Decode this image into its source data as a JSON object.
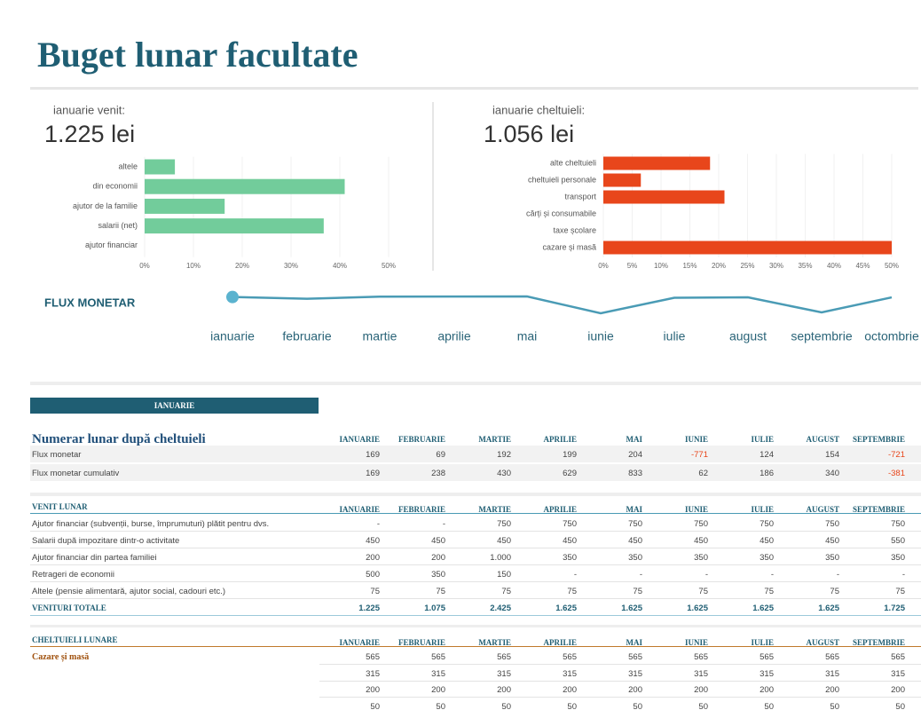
{
  "header": {
    "title": "Buget lunar facultate"
  },
  "chart_data": [
    {
      "type": "bar",
      "title": "ianuarie venit:",
      "subtitle": "1.225 lei",
      "categories": [
        "altele",
        "din economii",
        "ajutor de la familie",
        "salarii (net)",
        "ajutor financiar"
      ],
      "values": [
        6.2,
        41,
        16.4,
        36.7,
        0
      ],
      "color": "#72cc9b",
      "grid": true,
      "xlim": [
        0,
        50
      ],
      "xticks": [
        {
          "value": 0,
          "label": "0%"
        },
        {
          "value": 10,
          "label": "10%"
        },
        {
          "value": 20,
          "label": "20%"
        },
        {
          "value": 30,
          "label": "30%"
        },
        {
          "value": 40,
          "label": "40%"
        },
        {
          "value": 50,
          "label": "50%"
        }
      ]
    },
    {
      "type": "bar",
      "title": "ianuarie cheltuieli:",
      "subtitle": "1.056 lei",
      "categories": [
        "alte cheltuieli",
        "cheltuieli personale",
        "transport",
        "cărți și consumabile",
        "taxe școlare",
        "cazare și masă"
      ],
      "values": [
        18.5,
        6.5,
        21,
        0,
        0,
        50
      ],
      "color": "#e8461b",
      "grid": true,
      "xlim": [
        0,
        50
      ],
      "xticks": [
        {
          "value": 0,
          "label": "0%"
        },
        {
          "value": 5,
          "label": "5%"
        },
        {
          "value": 10,
          "label": "10%"
        },
        {
          "value": 15,
          "label": "15%"
        },
        {
          "value": 20,
          "label": "20%"
        },
        {
          "value": 25,
          "label": "25%"
        },
        {
          "value": 30,
          "label": "30%"
        },
        {
          "value": 35,
          "label": "35%"
        },
        {
          "value": 40,
          "label": "40%"
        },
        {
          "value": 45,
          "label": "45%"
        },
        {
          "value": 50,
          "label": "50%"
        }
      ]
    },
    {
      "type": "line",
      "title": "FLUX MONETAR",
      "categories": [
        "ianuarie",
        "februarie",
        "martie",
        "aprilie",
        "mai",
        "iunie",
        "iulie",
        "august",
        "septembrie",
        "octombrie"
      ],
      "values": [
        169,
        69,
        192,
        199,
        204,
        -771,
        124,
        154,
        -721,
        150
      ],
      "color": "#4a9bb5"
    }
  ],
  "tab": "IANUARIE",
  "tables": [
    {
      "title": "Numerar lunar după cheltuieli",
      "columns": [
        "IANUARIE",
        "FEBRUARIE",
        "MARTIE",
        "APRILIE",
        "MAI",
        "IUNIE",
        "IULIE",
        "AUGUST",
        "SEPTEMBRIE"
      ],
      "rows": [
        {
          "label": "Flux monetar",
          "cells": [
            "169",
            "69",
            "192",
            "199",
            "204",
            "-771",
            "124",
            "154",
            "-721"
          ]
        },
        {
          "label": "Flux monetar cumulativ",
          "cells": [
            "169",
            "238",
            "430",
            "629",
            "833",
            "62",
            "186",
            "340",
            "-381"
          ]
        }
      ]
    },
    {
      "title": "VENIT LUNAR",
      "columns": [
        "IANUARIE",
        "FEBRUARIE",
        "MARTIE",
        "APRILIE",
        "MAI",
        "IUNIE",
        "IULIE",
        "AUGUST",
        "SEPTEMBRIE"
      ],
      "rows": [
        {
          "label": "Ajutor financiar (subvenții, burse, împrumuturi) plătit pentru dvs.",
          "cells": [
            "-",
            "-",
            "750",
            "750",
            "750",
            "750",
            "750",
            "750",
            "750"
          ]
        },
        {
          "label": "Salarii după impozitare dintr-o activitate",
          "cells": [
            "450",
            "450",
            "450",
            "450",
            "450",
            "450",
            "450",
            "450",
            "550"
          ]
        },
        {
          "label": "Ajutor financiar din partea familiei",
          "cells": [
            "200",
            "200",
            "1.000",
            "350",
            "350",
            "350",
            "350",
            "350",
            "350"
          ]
        },
        {
          "label": "Retrageri de economii",
          "cells": [
            "500",
            "350",
            "150",
            "-",
            "-",
            "-",
            "-",
            "-",
            "-"
          ]
        },
        {
          "label": "Altele (pensie alimentară, ajutor social, cadouri etc.)",
          "cells": [
            "75",
            "75",
            "75",
            "75",
            "75",
            "75",
            "75",
            "75",
            "75"
          ]
        }
      ],
      "total": {
        "label": "VENITURI TOTALE",
        "cells": [
          "1.225",
          "1.075",
          "2.425",
          "1.625",
          "1.625",
          "1.625",
          "1.625",
          "1.625",
          "1.725"
        ]
      }
    },
    {
      "title": "CHELTUIELI LUNARE",
      "columns": [
        "IANUARIE",
        "FEBRUARIE",
        "MARTIE",
        "APRILIE",
        "MAI",
        "IUNIE",
        "IULIE",
        "AUGUST",
        "SEPTEMBRIE"
      ],
      "rows": [
        {
          "label": "Cazare și masă",
          "cells": [
            "565",
            "565",
            "565",
            "565",
            "565",
            "565",
            "565",
            "565",
            "565"
          ]
        },
        {
          "cells": [
            "315",
            "315",
            "315",
            "315",
            "315",
            "315",
            "315",
            "315",
            "315"
          ]
        },
        {
          "cells": [
            "200",
            "200",
            "200",
            "200",
            "200",
            "200",
            "200",
            "200",
            "200"
          ]
        },
        {
          "cells": [
            "50",
            "50",
            "50",
            "50",
            "50",
            "50",
            "50",
            "50",
            "50"
          ]
        }
      ]
    }
  ]
}
